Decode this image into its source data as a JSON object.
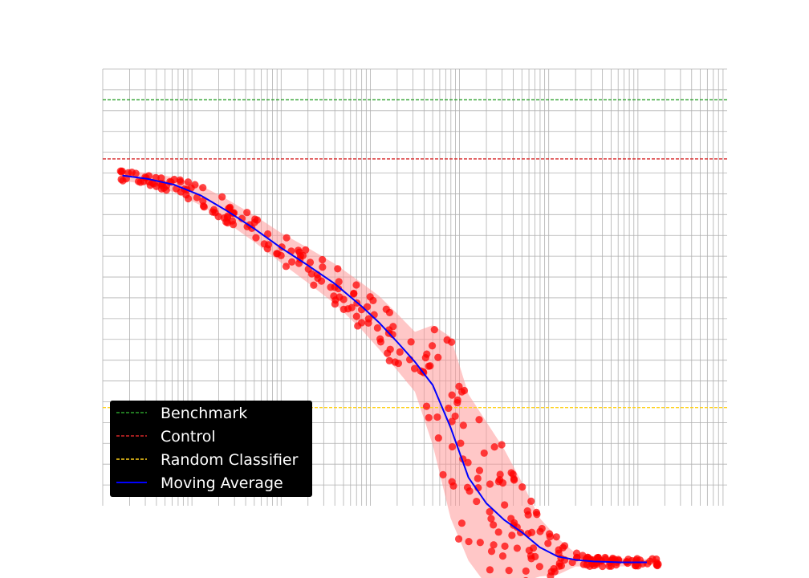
{
  "chart_data": {
    "type": "scatter",
    "title": "",
    "xlabel": "",
    "ylabel": "",
    "x_scale": "log",
    "x_range_decades": [
      0,
      7
    ],
    "ylim": [
      0.475,
      1.0
    ],
    "legend_position": "lower-left",
    "grid": true,
    "colors": {
      "benchmark": "#2ca02c",
      "control": "#d62728",
      "random": "#ffd11a",
      "moving_average": "#0000ff",
      "points": "#ff0000",
      "band": "#ff9999"
    },
    "reference_lines": {
      "benchmark": 0.963,
      "control": 0.892,
      "random": 0.593
    },
    "moving_average": {
      "x_decade": [
        0.22,
        0.5,
        0.8,
        1.1,
        1.4,
        1.7,
        2.0,
        2.3,
        2.6,
        2.9,
        3.1,
        3.3,
        3.5,
        3.7,
        3.9,
        4.1,
        4.3,
        4.5,
        4.7,
        4.9,
        5.1,
        5.3,
        5.5,
        5.8,
        6.1
      ],
      "y": [
        0.872,
        0.868,
        0.861,
        0.848,
        0.829,
        0.808,
        0.785,
        0.764,
        0.742,
        0.715,
        0.695,
        0.672,
        0.648,
        0.62,
        0.569,
        0.509,
        0.478,
        0.458,
        0.443,
        0.425,
        0.414,
        0.41,
        0.408,
        0.407,
        0.407
      ]
    },
    "band_halfwidth": [
      0.006,
      0.007,
      0.009,
      0.012,
      0.014,
      0.016,
      0.018,
      0.021,
      0.024,
      0.028,
      0.032,
      0.034,
      0.036,
      0.072,
      0.109,
      0.1,
      0.098,
      0.085,
      0.06,
      0.035,
      0.022,
      0.008,
      0.006,
      0.005,
      0.004
    ],
    "legend": [
      {
        "key": "benchmark",
        "label": "Benchmark",
        "style": "dashed"
      },
      {
        "key": "control",
        "label": "Control",
        "style": "dashed"
      },
      {
        "key": "random",
        "label": "Random Classifier",
        "style": "dashed"
      },
      {
        "key": "moving_average",
        "label": "Moving Average",
        "style": "solid"
      }
    ]
  }
}
